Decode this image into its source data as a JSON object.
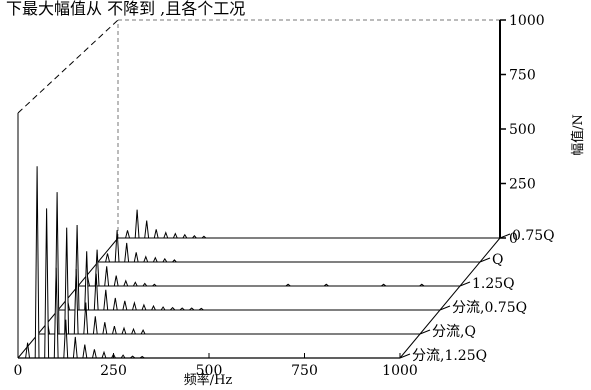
{
  "header_fragment": "下最大幅值从          不降到      ,且各个工况",
  "chart_data": {
    "type": "waterfall",
    "xlabel": "频率/Hz",
    "zlabel": "幅值/N",
    "xlim": [
      0,
      1000
    ],
    "zlim": [
      0,
      1000
    ],
    "x_ticks": [
      "0",
      "250",
      "500",
      "750",
      "1000"
    ],
    "z_ticks": [
      "0",
      "250",
      "500",
      "750",
      "1000"
    ],
    "grid": false,
    "series": [
      {
        "name": "0.75Q",
        "peaks": [
          [
            25,
            35
          ],
          [
            50,
            130
          ],
          [
            75,
            80
          ],
          [
            100,
            40
          ],
          [
            125,
            25
          ],
          [
            150,
            20
          ],
          [
            175,
            15
          ],
          [
            200,
            10
          ],
          [
            225,
            8
          ]
        ]
      },
      {
        "name": "Q",
        "peaks": [
          [
            25,
            40
          ],
          [
            50,
            150
          ],
          [
            75,
            90
          ],
          [
            100,
            45
          ],
          [
            125,
            25
          ],
          [
            150,
            20
          ],
          [
            175,
            15
          ],
          [
            200,
            10
          ]
        ]
      },
      {
        "name": "1.25Q",
        "peaks": [
          [
            25,
            45
          ],
          [
            50,
            175
          ],
          [
            75,
            95
          ],
          [
            100,
            50
          ],
          [
            125,
            25
          ],
          [
            150,
            18
          ],
          [
            175,
            12
          ],
          [
            200,
            8
          ],
          [
            550,
            8
          ],
          [
            650,
            8
          ],
          [
            800,
            8
          ],
          [
            900,
            8
          ]
        ]
      },
      {
        "name": "分流,0.75Q",
        "peaks": [
          [
            25,
            50
          ],
          [
            50,
            420
          ],
          [
            75,
            290
          ],
          [
            100,
            180
          ],
          [
            125,
            100
          ],
          [
            150,
            60
          ],
          [
            175,
            45
          ],
          [
            200,
            35
          ],
          [
            225,
            25
          ],
          [
            250,
            20
          ],
          [
            275,
            15
          ],
          [
            300,
            12
          ],
          [
            325,
            10
          ],
          [
            350,
            10
          ],
          [
            375,
            8
          ]
        ]
      },
      {
        "name": "分流,Q",
        "peaks": [
          [
            25,
            60
          ],
          [
            50,
            720
          ],
          [
            75,
            540
          ],
          [
            100,
            330
          ],
          [
            125,
            160
          ],
          [
            150,
            90
          ],
          [
            175,
            60
          ],
          [
            200,
            40
          ],
          [
            225,
            30
          ],
          [
            250,
            25
          ],
          [
            275,
            20
          ]
        ]
      },
      {
        "name": "分流,1.25Q",
        "peaks": [
          [
            25,
            80
          ],
          [
            50,
            1000
          ],
          [
            75,
            780
          ],
          [
            100,
            470
          ],
          [
            125,
            200
          ],
          [
            150,
            110
          ],
          [
            175,
            70
          ],
          [
            200,
            45
          ],
          [
            225,
            30
          ],
          [
            250,
            20
          ],
          [
            275,
            15
          ],
          [
            300,
            10
          ],
          [
            325,
            8
          ]
        ]
      }
    ]
  }
}
